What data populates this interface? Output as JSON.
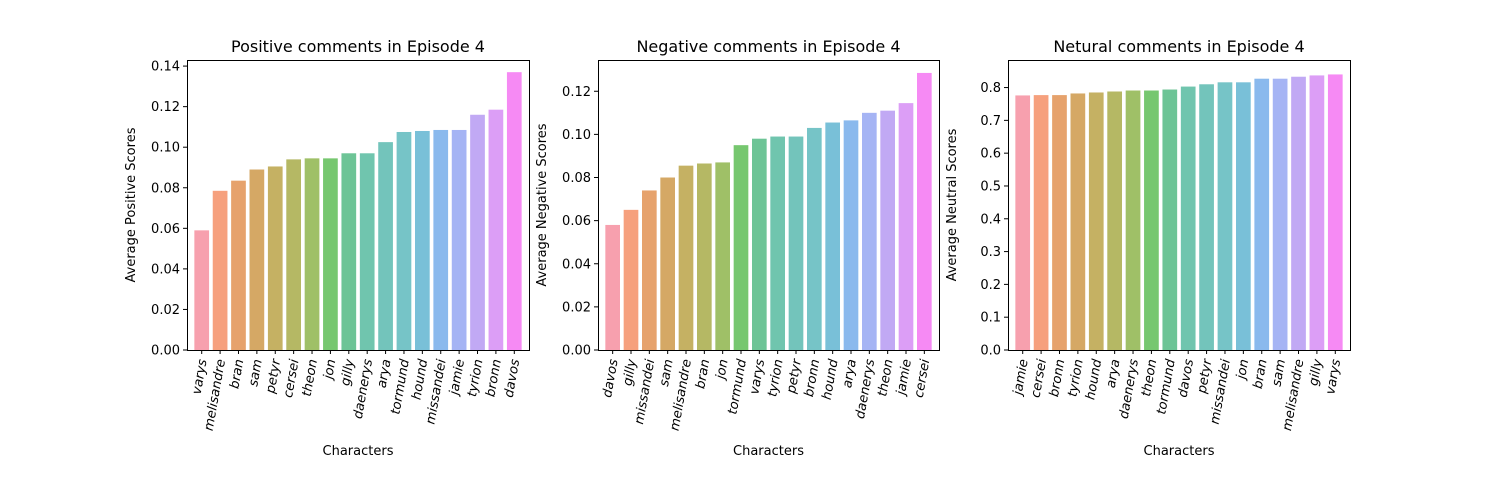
{
  "chart_data": [
    {
      "type": "bar",
      "title": "Positive comments in Episode 4",
      "xlabel": "Characters",
      "ylabel": "Average Positive Scores",
      "ylim": [
        0,
        0.143
      ],
      "yticks": [
        "0.00",
        "0.02",
        "0.04",
        "0.06",
        "0.08",
        "0.10",
        "0.12",
        "0.14"
      ],
      "categories": [
        "varys",
        "melisandre",
        "bran",
        "sam",
        "petyr",
        "cersei",
        "theon",
        "jon",
        "gilly",
        "daenerys",
        "arya",
        "tormund",
        "hound",
        "missandei",
        "jamie",
        "tyrion",
        "bronn",
        "davos"
      ],
      "values": [
        0.059,
        0.0785,
        0.0835,
        0.089,
        0.0905,
        0.094,
        0.0945,
        0.0945,
        0.097,
        0.097,
        0.1025,
        0.1075,
        0.108,
        0.1085,
        0.1085,
        0.116,
        0.1185,
        0.137
      ],
      "grid": false
    },
    {
      "type": "bar",
      "title": "Negative comments in Episode 4",
      "xlabel": "Characters",
      "ylabel": "Average Negative Scores",
      "ylim": [
        0,
        0.1345
      ],
      "yticks": [
        "0.00",
        "0.02",
        "0.04",
        "0.06",
        "0.08",
        "0.10",
        "0.12"
      ],
      "categories": [
        "davos",
        "gilly",
        "missandei",
        "sam",
        "melisandre",
        "bran",
        "jon",
        "tormund",
        "varys",
        "tyrion",
        "petyr",
        "bronn",
        "hound",
        "arya",
        "daenerys",
        "theon",
        "jamie",
        "cersei"
      ],
      "values": [
        0.058,
        0.065,
        0.074,
        0.08,
        0.0855,
        0.0865,
        0.087,
        0.095,
        0.098,
        0.099,
        0.099,
        0.103,
        0.1055,
        0.1065,
        0.11,
        0.111,
        0.1145,
        0.1285
      ],
      "grid": false
    },
    {
      "type": "bar",
      "title": "Netural comments in Episode 4",
      "xlabel": "Characters",
      "ylabel": "Average Neutral Scores",
      "ylim": [
        0,
        0.884
      ],
      "yticks": [
        "0.0",
        "0.1",
        "0.2",
        "0.3",
        "0.4",
        "0.5",
        "0.6",
        "0.7",
        "0.8"
      ],
      "categories": [
        "jamie",
        "cersei",
        "bronn",
        "tyrion",
        "hound",
        "arya",
        "daenerys",
        "theon",
        "tormund",
        "davos",
        "petyr",
        "missandei",
        "jon",
        "bran",
        "sam",
        "melisandre",
        "gilly",
        "varys"
      ],
      "values": [
        0.776,
        0.777,
        0.777,
        0.782,
        0.785,
        0.788,
        0.791,
        0.791,
        0.794,
        0.803,
        0.81,
        0.816,
        0.816,
        0.827,
        0.827,
        0.833,
        0.837,
        0.84
      ],
      "grid": false
    }
  ],
  "colors": [
    "#f7a0ae",
    "#f6a07d",
    "#e6a26c",
    "#d5a865",
    "#c5b163",
    "#b5b864",
    "#9fc067",
    "#76c76f",
    "#6dc496",
    "#70c5ae",
    "#73c4bb",
    "#76c4c7",
    "#79c0d8",
    "#8ab9ed",
    "#a5b4f4",
    "#c1a9f4",
    "#dc9ef6",
    "#f68af4"
  ]
}
